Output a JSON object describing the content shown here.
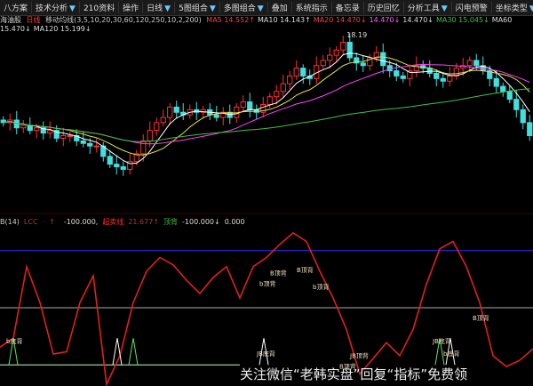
{
  "toolbar": {
    "items": [
      {
        "label": "八方案"
      },
      {
        "label": "技术分析",
        "dropdown": true
      },
      {
        "label": "210资料"
      },
      {
        "label": "操作"
      },
      {
        "label": "日线",
        "dropdown": true
      },
      {
        "label": "5图组合",
        "dropdown": true
      },
      {
        "label": "多图组合",
        "dropdown": true
      },
      {
        "label": "叠加"
      },
      {
        "label": "系统指示"
      },
      {
        "label": "备忘录"
      },
      {
        "label": "历史回忆"
      },
      {
        "label": "分析工具",
        "dropdown": true
      },
      {
        "label": "闪电预警"
      },
      {
        "label": "坐标类型",
        "dropdown": true
      }
    ]
  },
  "legend": {
    "stock": "海油股",
    "period": "日线",
    "indicator": "移动均线(3,5,10,20,30,60,120,250,10,2,200)",
    "ma_values": [
      {
        "text": "MA5 14.552↑",
        "color": "#ff4040"
      },
      {
        "text": "MA10 14.143↑",
        "color": "#dddddd"
      },
      {
        "text": "MA20 14.470↓",
        "color": "#ff4040"
      },
      {
        "text": "14.470↓",
        "color": "#ff60ff"
      },
      {
        "text": "14.470↓",
        "color": "#dddddd"
      },
      {
        "text": "MA30 15.045↓",
        "color": "#40c040"
      },
      {
        "text": "MA60 15.470↓",
        "color": "#dddddd"
      },
      {
        "text": "MA120 15.199↓",
        "color": "#dddddd"
      }
    ]
  },
  "osc_legend": {
    "items": [
      {
        "text": "B(14)",
        "color": "#cccccc"
      },
      {
        "text": "LCC",
        "color": "#c03030"
      },
      {
        "text": "·",
        "color": "#c03030"
      },
      {
        "text": "↑",
        "color": "#c03030"
      },
      {
        "text": "",
        "color": "#3030ff"
      },
      {
        "text": "-100.000,",
        "color": "#dddddd"
      },
      {
        "text": "超卖线",
        "color": "#ff3030"
      },
      {
        "text": "21.677↑",
        "color": "#c03030"
      },
      {
        "text": "顶背",
        "color": "#40c040"
      },
      {
        "text": "-100.000↓",
        "color": "#dddddd"
      },
      {
        "text": "0.000",
        "color": "#dddddd"
      }
    ]
  },
  "watermark": "关注微信“老韩实盘”回复“指标”免费领",
  "colors": {
    "up": "#ff3030",
    "down": "#40e0e0",
    "ma5": "#ffffff",
    "ma10": "#e0e040",
    "ma20": "#ff40ff",
    "ma60": "#40c040",
    "osc": "#e02020",
    "upper": "#3030ff",
    "zero": "#aaaaaa",
    "lower": "#c0ffc0"
  },
  "chart_data": [
    {
      "type": "candlestick",
      "title": "",
      "ylim": [
        12.5,
        18.5
      ],
      "peak_label": "18.19",
      "closes": [
        14.8,
        14.9,
        14.6,
        14.7,
        14.5,
        14.6,
        14.4,
        14.5,
        14.2,
        14.3,
        14.3,
        14.1,
        14.0,
        13.9,
        13.9,
        13.5,
        13.2,
        13.1,
        13.0,
        13.3,
        13.6,
        14.1,
        14.5,
        14.8,
        15.0,
        15.4,
        15.2,
        15.1,
        15.3,
        15.2,
        15.3,
        15.1,
        15.0,
        15.2,
        15.0,
        15.4,
        15.6,
        15.3,
        15.2,
        15.5,
        15.8,
        16.0,
        16.3,
        16.6,
        16.9,
        16.6,
        16.5,
        17.0,
        17.2,
        17.4,
        17.6,
        17.9,
        17.3,
        17.1,
        17.0,
        17.3,
        17.5,
        17.0,
        16.8,
        16.6,
        16.5,
        16.8,
        17.0,
        16.9,
        16.7,
        16.5,
        16.4,
        16.6,
        16.9,
        17.0,
        17.2,
        17.0,
        16.8,
        16.5,
        16.2,
        16.0,
        15.7,
        15.3,
        14.8,
        14.3
      ],
      "moving_averages": [
        5,
        10,
        20,
        60
      ]
    },
    {
      "type": "line",
      "ylim": [
        -137,
        137
      ],
      "reference_lines": [
        100,
        0,
        -100
      ],
      "values": [
        -69,
        -53,
        72,
        9,
        -81,
        -77,
        9,
        56,
        -134,
        -84,
        9,
        64,
        88,
        75,
        48,
        25,
        53,
        72,
        17,
        72,
        88,
        111,
        131,
        116,
        64,
        17,
        -38,
        -116,
        -89,
        -61,
        -84,
        -38,
        41,
        103,
        116,
        72,
        9,
        -84,
        -103,
        -92,
        -72
      ],
      "signals": [
        {
          "index": 1,
          "label": "b底背",
          "type": "bottom"
        },
        {
          "index": 8,
          "label": "",
          "type": "bottom"
        },
        {
          "index": 10,
          "label": "",
          "type": "bottom"
        },
        {
          "index": 20,
          "label": "B顶背",
          "type": "top"
        },
        {
          "index": 20,
          "label": "b顶背",
          "type": "top"
        },
        {
          "index": 22,
          "label": "B顶背",
          "type": "top"
        },
        {
          "index": 24,
          "label": "b顶背",
          "type": "top"
        },
        {
          "index": 26,
          "label": "JB顶背",
          "type": "top"
        },
        {
          "index": 26,
          "label": "B顶背",
          "type": "top"
        },
        {
          "index": 19,
          "label": "JB底背",
          "type": "bottom"
        },
        {
          "index": 33,
          "label": "JB底背",
          "type": "bottom"
        },
        {
          "index": 33,
          "label": "b底背",
          "type": "bottom"
        },
        {
          "index": 36,
          "label": "B顶背",
          "type": "top"
        }
      ]
    }
  ]
}
